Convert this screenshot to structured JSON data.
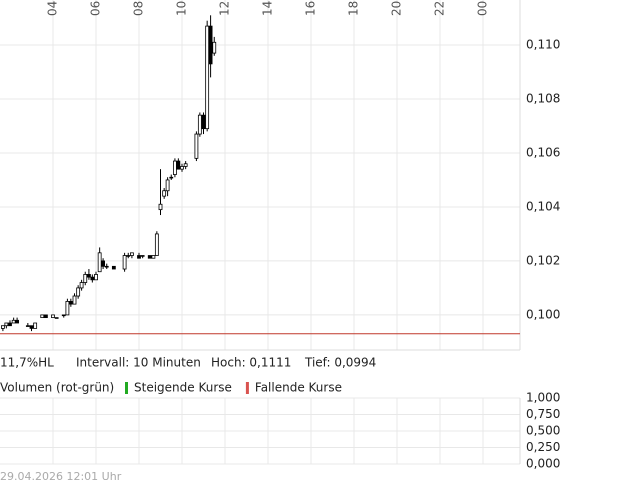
{
  "chart_data": [
    {
      "type": "candlestick",
      "x": [
        1.67,
        1.83,
        2.0,
        2.17,
        2.33,
        2.83,
        3.0,
        3.17,
        3.5,
        3.67,
        4.0,
        4.17,
        4.5,
        4.67,
        4.83,
        5.0,
        5.17,
        5.33,
        5.5,
        5.67,
        5.83,
        6.0,
        6.17,
        6.33,
        6.5,
        6.83,
        7.33,
        7.5,
        7.67,
        8.0,
        8.17,
        8.5,
        8.67,
        8.83,
        9.0,
        9.17,
        9.33,
        9.5,
        9.67,
        9.83,
        10.0,
        10.17,
        10.67,
        10.83,
        11.0,
        11.17,
        11.33,
        11.5
      ],
      "open": [
        0.0995,
        0.0996,
        0.0997,
        0.0997,
        0.0998,
        0.0996,
        0.0996,
        0.0995,
        0.0999,
        0.1,
        0.0999,
        0.0999,
        0.1,
        0.1,
        0.1005,
        0.1004,
        0.1007,
        0.101,
        0.1012,
        0.1015,
        0.1014,
        0.1013,
        0.1016,
        0.102,
        0.1018,
        0.1018,
        0.1017,
        0.1022,
        0.1022,
        0.1022,
        0.1022,
        0.1022,
        0.1021,
        0.1022,
        0.1039,
        0.1044,
        0.1046,
        0.1051,
        0.1052,
        0.1057,
        0.1054,
        0.1055,
        0.1058,
        0.1067,
        0.1074,
        0.1069,
        0.1107,
        0.1097
      ],
      "high": [
        0.0996,
        0.0997,
        0.0998,
        0.0999,
        0.0999,
        0.0997,
        0.0996,
        0.0997,
        0.1,
        0.1,
        0.1,
        0.0999,
        0.1,
        0.1006,
        0.1006,
        0.1008,
        0.1011,
        0.1013,
        0.1016,
        0.1017,
        0.1015,
        0.1016,
        0.1025,
        0.1021,
        0.1019,
        0.1018,
        0.1023,
        0.1023,
        0.1023,
        0.1023,
        0.1022,
        0.1022,
        0.1022,
        0.1031,
        0.1054,
        0.1047,
        0.1051,
        0.1052,
        0.1058,
        0.1058,
        0.1056,
        0.1057,
        0.1068,
        0.1075,
        0.1075,
        0.1109,
        0.1111,
        0.1103
      ],
      "low": [
        0.0994,
        0.0995,
        0.0996,
        0.0997,
        0.0997,
        0.0996,
        0.0994,
        0.0995,
        0.0999,
        0.0999,
        0.0999,
        0.0999,
        0.0999,
        0.1,
        0.1003,
        0.1004,
        0.1006,
        0.1009,
        0.1011,
        0.1013,
        0.1012,
        0.1013,
        0.1016,
        0.1017,
        0.1017,
        0.1017,
        0.1016,
        0.1021,
        0.1021,
        0.1021,
        0.1021,
        0.1021,
        0.1021,
        0.1022,
        0.1037,
        0.1043,
        0.1044,
        0.105,
        0.1051,
        0.1055,
        0.1053,
        0.1054,
        0.1057,
        0.1066,
        0.1067,
        0.1068,
        0.1088,
        0.1096
      ],
      "close": [
        0.0996,
        0.0997,
        0.0996,
        0.0998,
        0.0997,
        0.0996,
        0.0995,
        0.0997,
        0.1,
        0.0999,
        0.1,
        0.0999,
        0.1,
        0.1005,
        0.1004,
        0.1007,
        0.101,
        0.1012,
        0.1015,
        0.1014,
        0.1013,
        0.1015,
        0.1023,
        0.1018,
        0.1018,
        0.1017,
        0.1022,
        0.1022,
        0.1023,
        0.1021,
        0.1022,
        0.1021,
        0.1022,
        0.103,
        0.1041,
        0.1046,
        0.105,
        0.1051,
        0.1057,
        0.1054,
        0.1055,
        0.1056,
        0.1067,
        0.1074,
        0.1069,
        0.1107,
        0.1093,
        0.1101
      ],
      "xlim": [
        1.535,
        25.72
      ],
      "xticks": [
        {
          "value": 4,
          "label": "04"
        },
        {
          "value": 6,
          "label": "06"
        },
        {
          "value": 8,
          "label": "08"
        },
        10,
        12,
        14,
        16,
        18,
        20,
        22,
        {
          "value": 24,
          "label": "00"
        }
      ],
      "ylim": [
        0.0987,
        0.111
      ],
      "yticks": [
        {
          "value": 0.1,
          "label": "0,100"
        },
        {
          "value": 0.102,
          "label": "0,102"
        },
        {
          "value": 0.104,
          "label": "0,104"
        },
        {
          "value": 0.106,
          "label": "0,106"
        },
        {
          "value": 0.108,
          "label": "0,108"
        },
        {
          "value": 0.11,
          "label": "0,110"
        }
      ],
      "reference_line": 0.0993,
      "reference_color": "#c0392b",
      "grid": true
    },
    {
      "type": "volume",
      "title": "Volumen (rot-grün)",
      "legend": [
        {
          "name": "Steigende Kurse",
          "color": "#22aa22"
        },
        {
          "name": "Fallende Kurse",
          "color": "#d9534f"
        }
      ],
      "ylim": [
        0,
        1
      ],
      "yticks": [
        {
          "value": 0,
          "label": "0,000"
        },
        {
          "value": 0.25,
          "label": "0,250"
        },
        {
          "value": 0.5,
          "label": "0,500"
        },
        {
          "value": 0.75,
          "label": "0,750"
        },
        {
          "value": 1,
          "label": "1,000"
        }
      ],
      "grid": true
    }
  ],
  "info": [
    "11,7%HL",
    "Intervall: 10 Minuten",
    "Hoch: 0,1111",
    "Tief: 0,0994"
  ],
  "footer": "29.04.2026 12:01 Uhr"
}
